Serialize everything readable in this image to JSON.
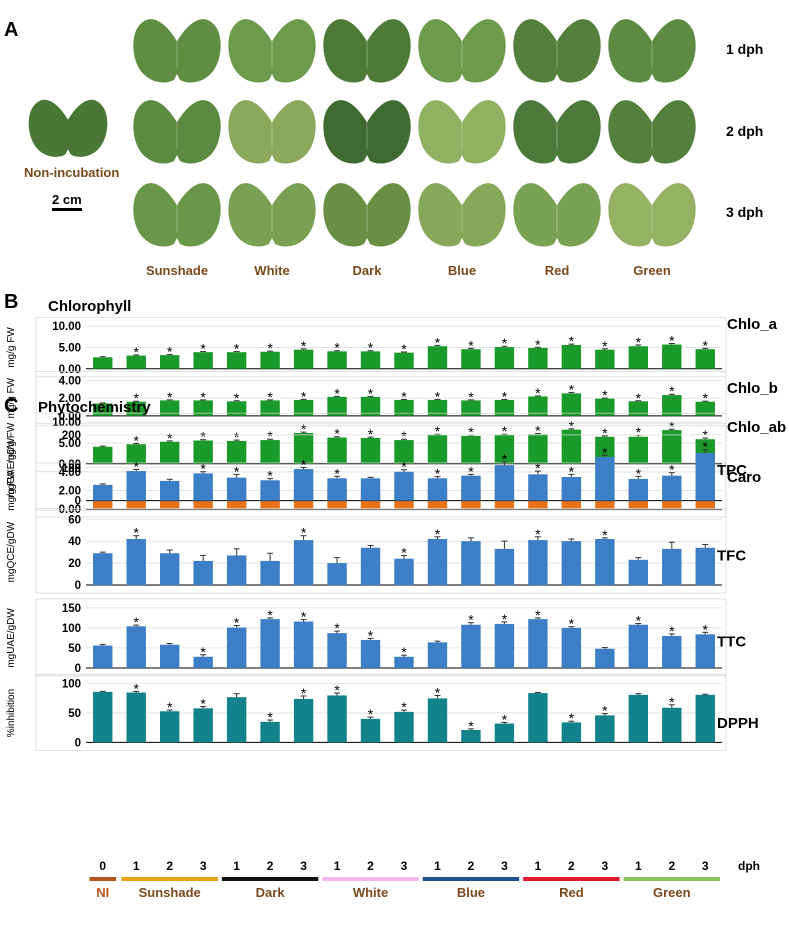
{
  "panelA": {
    "letter": "A",
    "dph_labels": [
      "1 dph",
      "2 dph",
      "3 dph"
    ],
    "nonincubation_label": "Non-incubation",
    "scalebar_label": "2 cm",
    "treatments": [
      "Sunshade",
      "White",
      "Dark",
      "Blue",
      "Red",
      "Green"
    ],
    "colors": {
      "label_brown": "#7a4a1c",
      "leaf_dark": "#3e6b35",
      "leaf_light": "#8fae5a"
    },
    "leaf_tones": [
      [
        "#5f8e43",
        "#6d9a4b",
        "#4e7a38",
        "#6e9a4c",
        "#547f3c",
        "#5e8b44"
      ],
      [
        "#5b8a40",
        "#8aa95c",
        "#3f6b32",
        "#8fb161",
        "#4d7a3a",
        "#557f3d"
      ],
      [
        "#6a964a",
        "#7aa153",
        "#688f44",
        "#86a85a",
        "#7aa255",
        "#93b263"
      ]
    ],
    "nonincubation_tone": "#4a7636"
  },
  "panelB": {
    "letter": "B",
    "title": "Chlorophyll",
    "chart_data": [
      {
        "type": "bar",
        "name": "Chlo_a",
        "ylabel": "mg/g FW",
        "ylim": [
          0,
          10
        ],
        "ticks": [
          "0.00",
          "5.00",
          "10.00"
        ],
        "tickvals": [
          0,
          5,
          10
        ],
        "color": "#1a9a2a",
        "values": [
          2.7,
          3.1,
          3.2,
          3.9,
          3.9,
          4.0,
          4.5,
          4.1,
          4.1,
          3.8,
          5.3,
          4.6,
          5.1,
          4.9,
          5.6,
          4.5,
          5.3,
          5.7,
          4.6
        ],
        "errors": [
          0.15,
          0.15,
          0.15,
          0.15,
          0.15,
          0.15,
          0.2,
          0.15,
          0.15,
          0.15,
          0.2,
          0.2,
          0.2,
          0.15,
          0.2,
          0.2,
          0.3,
          0.25,
          0.2
        ],
        "sig": [
          false,
          true,
          true,
          true,
          true,
          true,
          true,
          true,
          true,
          true,
          true,
          true,
          true,
          true,
          true,
          true,
          true,
          true,
          true
        ]
      },
      {
        "type": "bar",
        "name": "Chlo_b",
        "ylabel": "mg/g FW",
        "ylim": [
          0,
          4
        ],
        "ticks": [
          "0.00",
          "2.00",
          "4.00"
        ],
        "tickvals": [
          0,
          2,
          4
        ],
        "color": "#1a9a2a",
        "values": [
          1.4,
          1.6,
          1.75,
          1.75,
          1.65,
          1.75,
          1.8,
          2.15,
          2.15,
          1.8,
          1.8,
          1.75,
          1.8,
          2.2,
          2.55,
          1.95,
          1.65,
          2.35,
          1.6
        ],
        "errors": [
          0.06,
          0.06,
          0.06,
          0.06,
          0.06,
          0.06,
          0.06,
          0.06,
          0.06,
          0.06,
          0.06,
          0.06,
          0.06,
          0.06,
          0.1,
          0.06,
          0.06,
          0.1,
          0.06
        ],
        "sig": [
          false,
          true,
          true,
          true,
          true,
          true,
          true,
          true,
          true,
          true,
          true,
          true,
          true,
          true,
          true,
          true,
          true,
          true,
          true
        ]
      },
      {
        "type": "bar",
        "name": "Chlo_ab",
        "ylabel": "mg/g FW",
        "ylim": [
          0,
          10
        ],
        "ticks": [
          "0.00",
          "5.00",
          "10.00"
        ],
        "tickvals": [
          0,
          5,
          10
        ],
        "color": "#1a9a2a",
        "values": [
          4.1,
          4.7,
          5.3,
          5.6,
          5.5,
          5.7,
          7.4,
          6.3,
          6.2,
          5.7,
          6.9,
          6.7,
          6.9,
          7.1,
          8.2,
          6.5,
          6.5,
          8.1,
          5.9
        ],
        "errors": [
          0.15,
          0.2,
          0.2,
          0.2,
          0.2,
          0.2,
          0.2,
          0.2,
          0.2,
          0.2,
          0.2,
          0.2,
          0.2,
          0.2,
          0.2,
          0.2,
          0.4,
          0.2,
          0.3
        ],
        "sig": [
          false,
          true,
          true,
          true,
          true,
          true,
          true,
          true,
          true,
          true,
          true,
          true,
          true,
          true,
          true,
          true,
          true,
          true,
          true
        ]
      },
      {
        "type": "bar",
        "name": "Caro",
        "ylabel": "mg/g FW",
        "ylim": [
          0,
          4
        ],
        "ticks": [
          "0.00",
          "2.00",
          "4.00"
        ],
        "tickvals": [
          0,
          2,
          4
        ],
        "color": "#e8731a",
        "values": [
          1.35,
          1.55,
          1.75,
          1.75,
          1.75,
          1.85,
          2.15,
          2.05,
          1.85,
          1.85,
          2.05,
          2.05,
          2.1,
          2.1,
          2.2,
          2.05,
          2.1,
          2.2,
          1.8
        ],
        "errors": [
          0.08,
          0.06,
          0.06,
          0.06,
          0.06,
          0.06,
          0.06,
          0.06,
          0.06,
          0.06,
          0.06,
          0.06,
          0.06,
          0.06,
          0.06,
          0.06,
          0.06,
          0.06,
          0.12
        ],
        "sig": [
          false,
          true,
          true,
          true,
          true,
          true,
          true,
          true,
          true,
          true,
          true,
          true,
          true,
          true,
          true,
          true,
          true,
          true,
          true
        ]
      }
    ]
  },
  "panelC": {
    "letter": "C",
    "title": "Phytochemistry",
    "chart_data": [
      {
        "type": "bar",
        "name": "TPC",
        "ylabel": "mgGAE/gDW",
        "ylim": [
          0,
          200
        ],
        "ticks": [
          "0",
          "100",
          "200"
        ],
        "tickvals": [
          0,
          100,
          200
        ],
        "color": "#3d7fc6",
        "values": [
          48,
          90,
          60,
          83,
          70,
          62,
          96,
          68,
          68,
          88,
          68,
          76,
          108,
          80,
          72,
          133,
          66,
          76,
          145
        ],
        "errors": [
          3,
          5,
          5,
          5,
          10,
          5,
          5,
          6,
          3,
          6,
          5,
          4,
          10,
          10,
          8,
          5,
          8,
          9,
          10
        ],
        "sig": [
          false,
          true,
          false,
          true,
          true,
          true,
          true,
          true,
          false,
          true,
          true,
          true,
          true,
          true,
          true,
          true,
          true,
          true,
          true
        ]
      },
      {
        "type": "bar",
        "name": "TFC",
        "ylabel": "mgQCE/gDW",
        "ylim": [
          0,
          60
        ],
        "ticks": [
          "0",
          "20",
          "40",
          "60"
        ],
        "tickvals": [
          0,
          20,
          40,
          60
        ],
        "color": "#3d7fc6",
        "values": [
          29,
          42,
          29,
          22,
          27,
          22,
          41,
          20,
          34,
          24,
          42,
          40,
          33,
          41,
          40,
          42,
          23,
          33,
          34
        ],
        "errors": [
          1,
          3,
          3,
          5,
          6,
          7,
          4,
          5,
          2,
          3,
          2,
          3,
          7,
          3,
          2,
          1,
          2,
          6,
          3
        ],
        "sig": [
          false,
          true,
          false,
          false,
          false,
          false,
          true,
          false,
          false,
          true,
          true,
          false,
          false,
          true,
          false,
          true,
          false,
          false,
          false
        ]
      },
      {
        "type": "bar",
        "name": "TTC",
        "ylabel": "mgUAE/gDW",
        "ylim": [
          0,
          150
        ],
        "ticks": [
          "0",
          "50",
          "100",
          "150"
        ],
        "tickvals": [
          0,
          50,
          100,
          150
        ],
        "color": "#3d7fc6",
        "values": [
          56,
          104,
          58,
          28,
          101,
          122,
          116,
          87,
          70,
          28,
          64,
          108,
          110,
          122,
          100,
          48,
          108,
          80,
          84
        ],
        "errors": [
          3,
          3,
          3,
          5,
          5,
          3,
          5,
          5,
          4,
          4,
          3,
          5,
          5,
          3,
          3,
          3,
          3,
          5,
          5
        ],
        "sig": [
          false,
          true,
          false,
          true,
          true,
          true,
          true,
          true,
          true,
          true,
          false,
          true,
          true,
          true,
          true,
          false,
          true,
          true,
          true
        ]
      },
      {
        "type": "bar",
        "name": "DPPH",
        "ylabel": "%inhibition",
        "ylim": [
          0,
          100
        ],
        "ticks": [
          "0",
          "50",
          "100"
        ],
        "tickvals": [
          0,
          50,
          100
        ],
        "color": "#12838a",
        "values": [
          86,
          85,
          53,
          58,
          77,
          35,
          74,
          80,
          40,
          52,
          75,
          21,
          32,
          84,
          34,
          46,
          81,
          59,
          81
        ],
        "errors": [
          1,
          2,
          2,
          3,
          6,
          3,
          5,
          4,
          3,
          3,
          5,
          2,
          2,
          1,
          2,
          3,
          2,
          5,
          1
        ],
        "sig": [
          false,
          true,
          true,
          true,
          false,
          true,
          true,
          true,
          true,
          true,
          true,
          true,
          true,
          false,
          true,
          true,
          false,
          true,
          false
        ]
      }
    ],
    "xaxis": {
      "ticks": [
        "0",
        "1",
        "2",
        "3",
        "1",
        "2",
        "3",
        "1",
        "2",
        "3",
        "1",
        "2",
        "3",
        "1",
        "2",
        "3",
        "1",
        "2",
        "3"
      ],
      "unit": "dph",
      "groups": [
        {
          "label": "NI",
          "color": "#b5561f",
          "text_color": "#b5561f"
        },
        {
          "label": "Sunshade",
          "color": "#e8a21a",
          "text_color": "#7a4a1c"
        },
        {
          "label": "Dark",
          "color": "#111111",
          "text_color": "#7a4a1c"
        },
        {
          "label": "White",
          "color": "#f7b7ea",
          "text_color": "#7a4a1c"
        },
        {
          "label": "Blue",
          "color": "#1f4f8e",
          "text_color": "#7a4a1c"
        },
        {
          "label": "Red",
          "color": "#e01b2e",
          "text_color": "#7a4a1c"
        },
        {
          "label": "Green",
          "color": "#8fc25a",
          "text_color": "#7a4a1c"
        }
      ]
    }
  },
  "significance_mark": "*"
}
